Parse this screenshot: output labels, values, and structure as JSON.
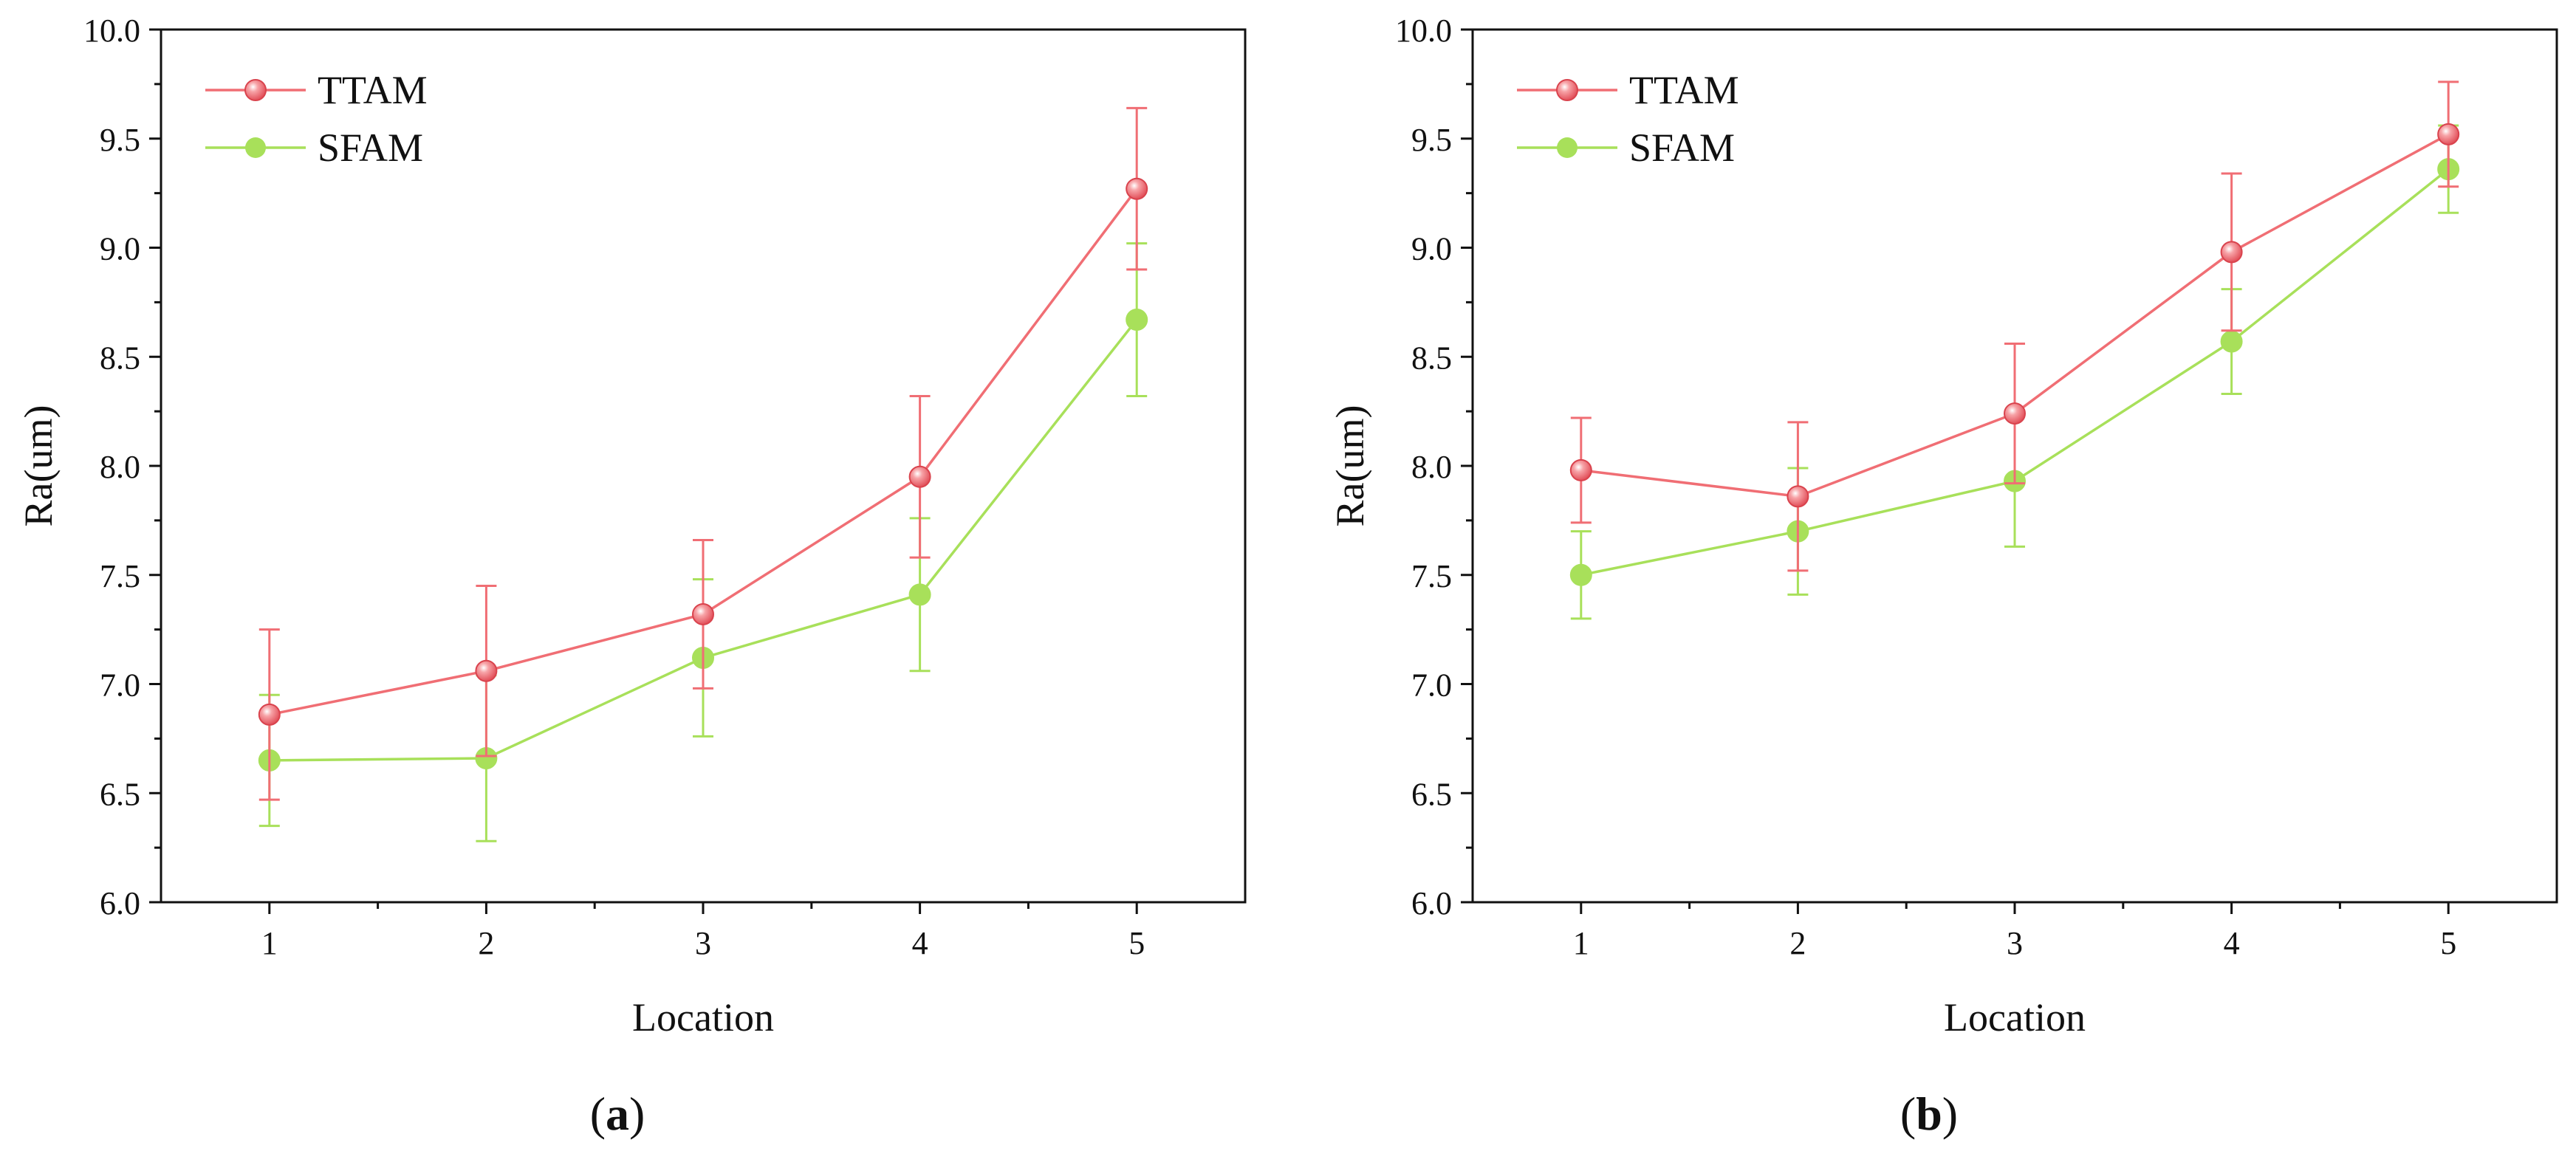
{
  "colors": {
    "ttam": "#f06e74",
    "sfam": "#a8e05a",
    "axis": "#111111",
    "background": "#ffffff"
  },
  "chart_data": [
    {
      "type": "line",
      "panel_label": "a",
      "title": "",
      "xlabel": "Location",
      "ylabel": "Ra(um)",
      "x": [
        1,
        2,
        3,
        4,
        5
      ],
      "xticks": [
        "1",
        "2",
        "3",
        "4",
        "5"
      ],
      "xlim": [
        0.5,
        5.5
      ],
      "ylim": [
        6.0,
        10.0
      ],
      "yticks": [
        "6.0",
        "6.5",
        "7.0",
        "7.5",
        "8.0",
        "8.5",
        "9.0",
        "9.5",
        "10.0"
      ],
      "legend_position": "top-left",
      "grid": false,
      "series": [
        {
          "name": "TTAM",
          "color_key": "ttam",
          "marker": "sphere",
          "values": [
            6.86,
            7.06,
            7.32,
            7.95,
            9.27
          ],
          "errors": [
            0.39,
            0.39,
            0.34,
            0.37,
            0.37
          ]
        },
        {
          "name": "SFAM",
          "color_key": "sfam",
          "marker": "circle",
          "values": [
            6.65,
            6.66,
            7.12,
            7.41,
            8.67
          ],
          "errors": [
            0.3,
            0.38,
            0.36,
            0.35,
            0.35
          ]
        }
      ]
    },
    {
      "type": "line",
      "panel_label": "b",
      "title": "",
      "xlabel": "Location",
      "ylabel": "Ra(um)",
      "x": [
        1,
        2,
        3,
        4,
        5
      ],
      "xticks": [
        "1",
        "2",
        "3",
        "4",
        "5"
      ],
      "xlim": [
        0.5,
        5.5
      ],
      "ylim": [
        6.0,
        10.0
      ],
      "yticks": [
        "6.0",
        "6.5",
        "7.0",
        "7.5",
        "8.0",
        "8.5",
        "9.0",
        "9.5",
        "10.0"
      ],
      "legend_position": "top-left",
      "grid": false,
      "series": [
        {
          "name": "TTAM",
          "color_key": "ttam",
          "marker": "sphere",
          "values": [
            7.98,
            7.86,
            8.24,
            8.98,
            9.52
          ],
          "errors": [
            0.24,
            0.34,
            0.32,
            0.36,
            0.24
          ]
        },
        {
          "name": "SFAM",
          "color_key": "sfam",
          "marker": "circle",
          "values": [
            7.5,
            7.7,
            7.93,
            8.57,
            9.36
          ],
          "errors": [
            0.2,
            0.29,
            0.3,
            0.24,
            0.2
          ]
        }
      ]
    }
  ]
}
